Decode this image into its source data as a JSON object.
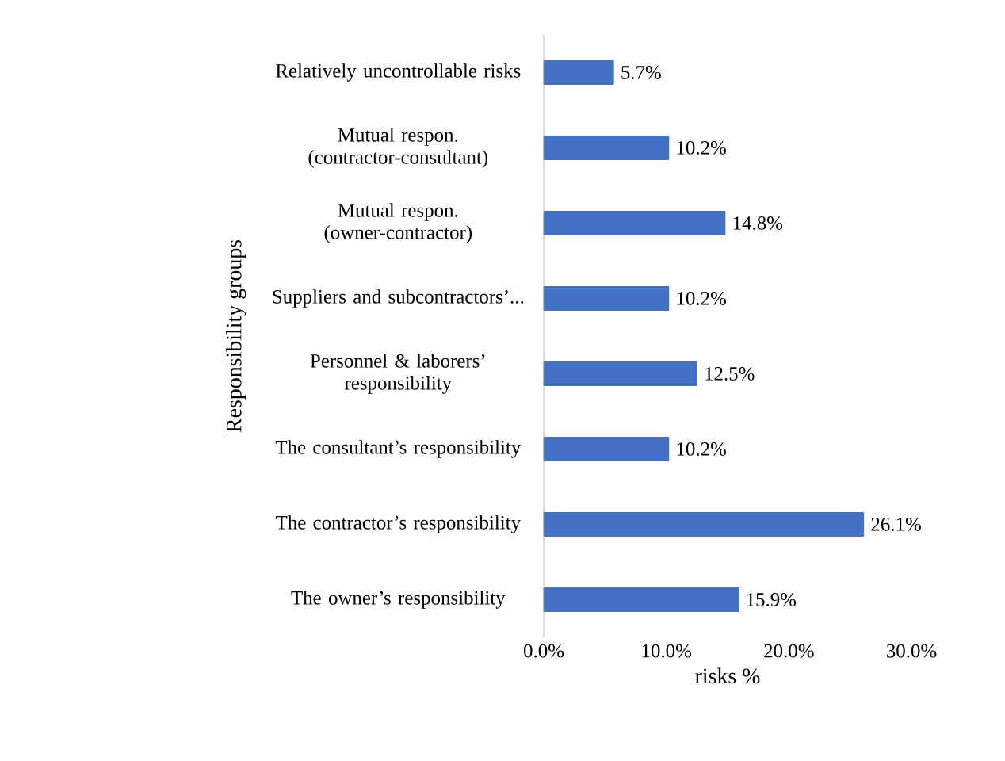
{
  "chart_data": {
    "type": "bar",
    "orientation": "horizontal",
    "categories": [
      "Relatively uncontrollable risks",
      "Mutual respon. (contractor-consultant)",
      "Mutual respon. (owner-contractor)",
      "Suppliers and subcontractors’...",
      "Personnel & laborers’ responsibility",
      "The consultant’s responsibility",
      "The contractor’s responsibility",
      "The owner’s responsibility"
    ],
    "values": [
      5.7,
      10.2,
      14.8,
      10.2,
      12.5,
      10.2,
      26.1,
      15.9
    ],
    "value_labels": [
      "5.7%",
      "10.2%",
      "14.8%",
      "10.2%",
      "12.5%",
      "10.2%",
      "26.1%",
      "15.9%"
    ],
    "color": "#4472c4",
    "xlim": [
      0,
      30
    ],
    "xticks": [
      {
        "value": 0,
        "label": "0.0%"
      },
      {
        "value": 10,
        "label": "10.0%"
      },
      {
        "value": 20,
        "label": "20.0%"
      },
      {
        "value": 30,
        "label": "30.0%"
      }
    ],
    "xlabel": "risks %",
    "ylabel": "Responsibility groups"
  }
}
